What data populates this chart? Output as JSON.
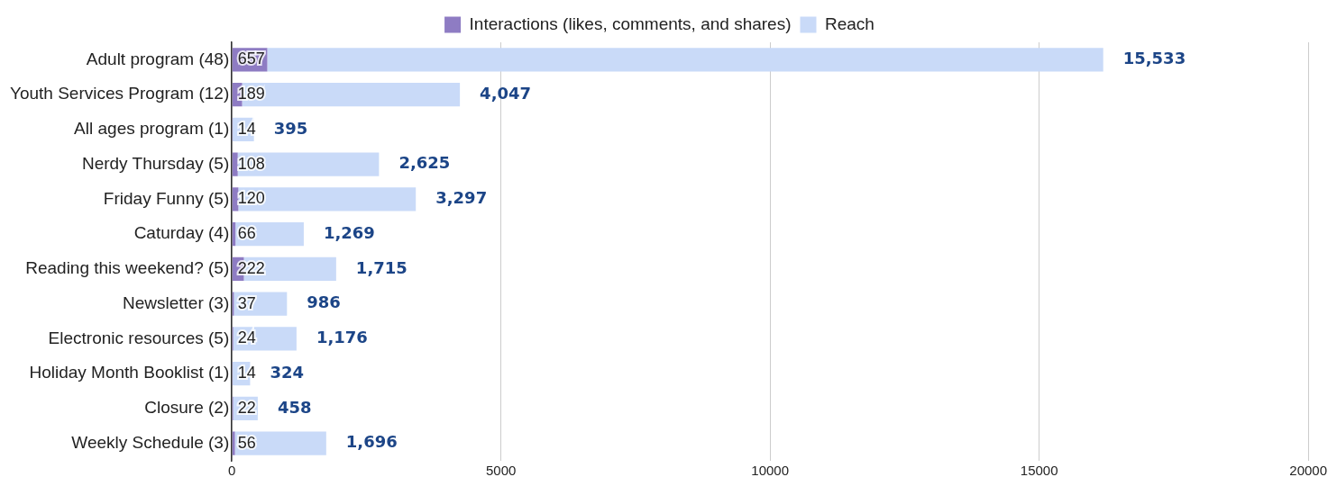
{
  "chart_data": {
    "type": "bar",
    "orientation": "horizontal",
    "stacked": true,
    "categories": [
      "Adult program (48)",
      "Youth Services Program (12)",
      "All ages program (1)",
      "Nerdy Thursday (5)",
      "Friday Funny (5)",
      "Caturday (4)",
      "Reading this weekend? (5)",
      "Newsletter (3)",
      "Electronic resources (5)",
      "Holiday Month Booklist (1)",
      "Closure (2)",
      "Weekly Schedule (3)"
    ],
    "series": [
      {
        "name": "Interactions (likes, comments, and shares)",
        "color": "#8e7cc3",
        "values": [
          657,
          189,
          14,
          108,
          120,
          66,
          222,
          37,
          24,
          14,
          22,
          56
        ],
        "value_labels": [
          "657",
          "189",
          "14",
          "108",
          "120",
          "66",
          "222",
          "37",
          "24",
          "14",
          "22",
          "56"
        ]
      },
      {
        "name": "Reach",
        "color": "#c9daf8",
        "values": [
          15533,
          4047,
          395,
          2625,
          3297,
          1269,
          1715,
          986,
          1176,
          324,
          458,
          1696
        ],
        "value_labels": [
          "15,533",
          "4,047",
          "395",
          "2,625",
          "3,297",
          "1,269",
          "1,715",
          "986",
          "1,176",
          "324",
          "458",
          "1,696"
        ]
      }
    ],
    "xlim": [
      0,
      20000
    ],
    "xticks": [
      0,
      5000,
      10000,
      15000,
      20000
    ],
    "grid": "x",
    "legend": "top"
  }
}
